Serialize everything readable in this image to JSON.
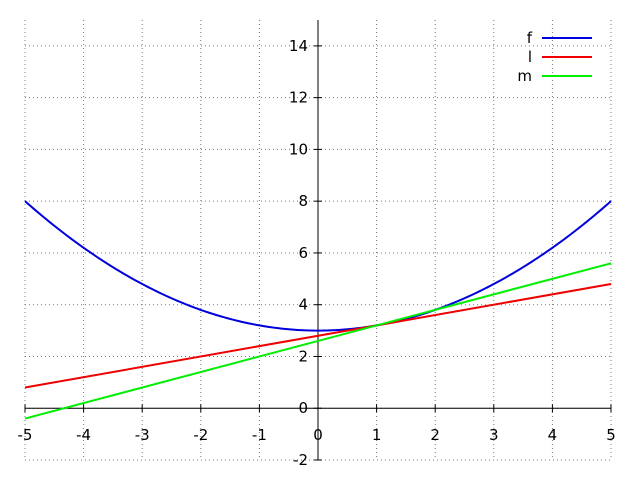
{
  "chart_data": {
    "type": "line",
    "title": "",
    "xlabel": "",
    "ylabel": "",
    "xlim": [
      -5,
      5
    ],
    "ylim": [
      -2,
      15
    ],
    "grid": true,
    "legend_position": "top-right",
    "x_ticks": [
      -5,
      -4,
      -3,
      -2,
      -1,
      0,
      1,
      2,
      3,
      4,
      5
    ],
    "y_ticks": [
      -2,
      0,
      2,
      4,
      6,
      8,
      10,
      12,
      14
    ],
    "series": [
      {
        "name": "f",
        "color": "#0000dd",
        "kind": "function",
        "x": [
          -5,
          -4,
          -3,
          -2,
          -1,
          0,
          1,
          2,
          3,
          4,
          5
        ],
        "y": [
          8,
          6.2,
          4.8,
          3.8,
          3.2,
          3.0,
          3.2,
          3.8,
          4.8,
          6.2,
          8.0
        ]
      },
      {
        "name": "l",
        "color": "#ee0000",
        "kind": "line",
        "x": [
          -5,
          5
        ],
        "y": [
          0.8,
          4.8
        ]
      },
      {
        "name": "m",
        "color": "#00ee00",
        "kind": "line",
        "x": [
          -5,
          5
        ],
        "y": [
          -0.4,
          5.6
        ]
      }
    ]
  }
}
